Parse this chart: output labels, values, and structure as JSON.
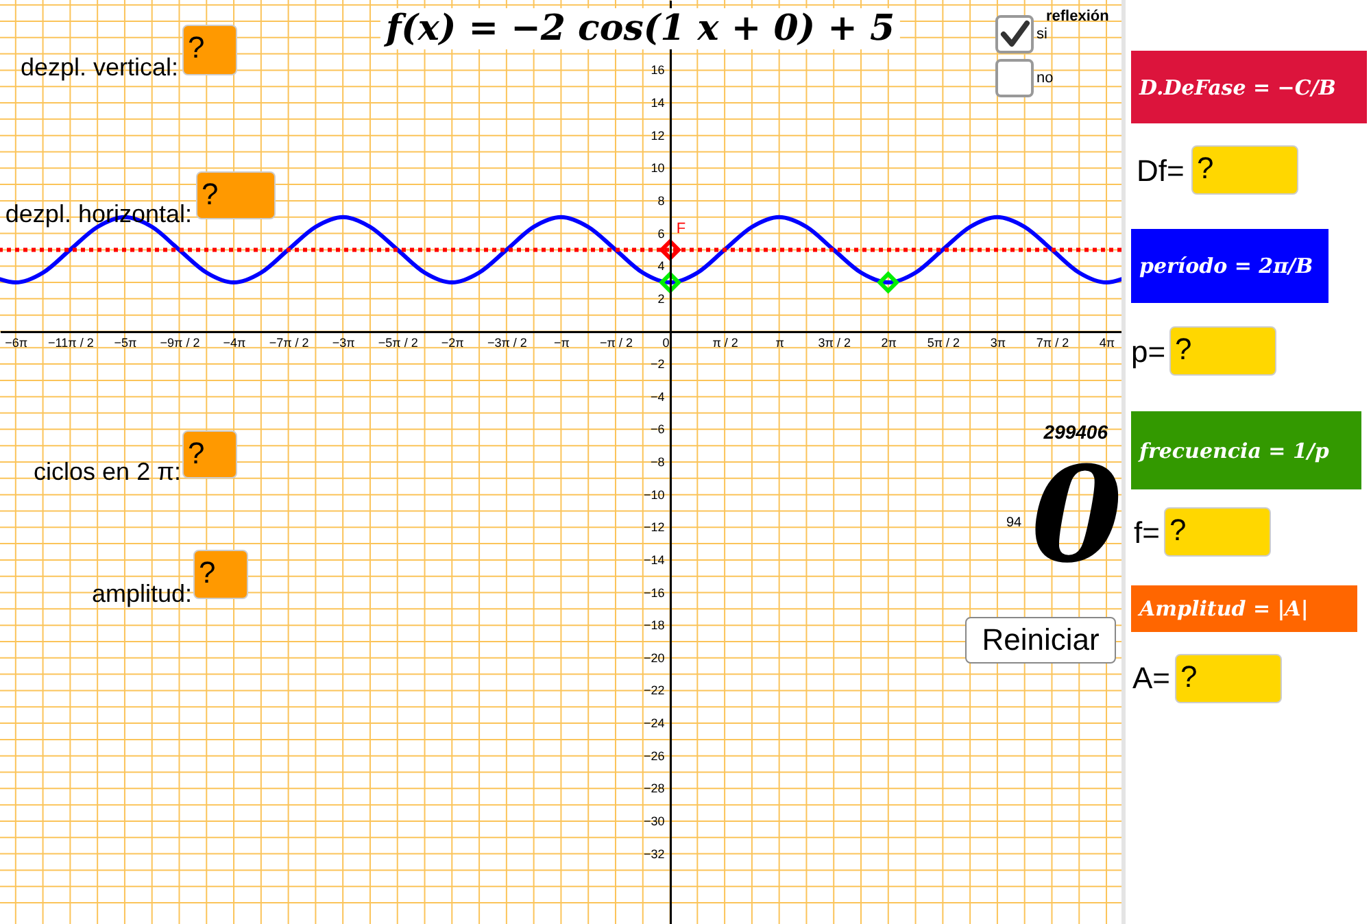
{
  "chart_data": {
    "type": "line",
    "title": "f(x) = −2 cos(1 x + 0) + 5",
    "xlim": [
      -19.3,
      13.0
    ],
    "ylim": [
      -36.3,
      20.3
    ],
    "xticks": [
      {
        "value": -18.8496,
        "label": "−6π"
      },
      {
        "value": -18.0642,
        "label": null
      },
      {
        "value": -17.2788,
        "label": "−11π / 2"
      },
      {
        "value": -16.4934,
        "label": null
      },
      {
        "value": -15.708,
        "label": "−5π"
      },
      {
        "value": -14.9226,
        "label": null
      },
      {
        "value": -14.1372,
        "label": "−9π / 2"
      },
      {
        "value": -13.3518,
        "label": null
      },
      {
        "value": -12.5664,
        "label": "−4π"
      },
      {
        "value": -11.781,
        "label": null
      },
      {
        "value": -10.9956,
        "label": "−7π / 2"
      },
      {
        "value": -10.2102,
        "label": null
      },
      {
        "value": -9.4248,
        "label": "−3π"
      },
      {
        "value": -8.6394,
        "label": null
      },
      {
        "value": -7.854,
        "label": "−5π / 2"
      },
      {
        "value": -7.0686,
        "label": null
      },
      {
        "value": -6.2832,
        "label": "−2π"
      },
      {
        "value": -5.4978,
        "label": null
      },
      {
        "value": -4.7124,
        "label": "−3π / 2"
      },
      {
        "value": -3.927,
        "label": null
      },
      {
        "value": -3.1416,
        "label": "−π"
      },
      {
        "value": -2.3562,
        "label": null
      },
      {
        "value": -1.5708,
        "label": "−π / 2"
      },
      {
        "value": -0.7854,
        "label": null
      },
      0,
      {
        "value": 0.7854,
        "label": null
      },
      {
        "value": 1.5708,
        "label": "π / 2"
      },
      {
        "value": 2.3562,
        "label": null
      },
      {
        "value": 3.1416,
        "label": "π"
      },
      {
        "value": 3.927,
        "label": null
      },
      {
        "value": 4.7124,
        "label": "3π / 2"
      },
      {
        "value": 5.4978,
        "label": null
      },
      {
        "value": 6.2832,
        "label": "2π"
      },
      {
        "value": 7.0686,
        "label": null
      },
      {
        "value": 7.854,
        "label": "5π / 2"
      },
      {
        "value": 8.6394,
        "label": null
      },
      {
        "value": 9.4248,
        "label": "3π"
      },
      {
        "value": 10.2102,
        "label": null
      },
      {
        "value": 10.9956,
        "label": "7π / 2"
      },
      {
        "value": 11.781,
        "label": null
      },
      {
        "value": 12.5664,
        "label": "4π"
      }
    ],
    "yticks": [
      {
        "value": -35,
        "label": null
      },
      {
        "value": -34,
        "label": null
      },
      {
        "value": -33,
        "label": null
      },
      -32,
      {
        "value": -31,
        "label": null
      },
      -30,
      {
        "value": -29,
        "label": null
      },
      -28,
      {
        "value": -27,
        "label": null
      },
      -26,
      {
        "value": -25,
        "label": null
      },
      -24,
      {
        "value": -23,
        "label": null
      },
      -22,
      {
        "value": -21,
        "label": null
      },
      -20,
      {
        "value": -19,
        "label": null
      },
      -18,
      {
        "value": -17,
        "label": null
      },
      -16,
      {
        "value": -15,
        "label": null
      },
      -14,
      {
        "value": -13,
        "label": null
      },
      -12,
      {
        "value": -11,
        "label": null
      },
      -10,
      {
        "value": -9,
        "label": null
      },
      -8,
      {
        "value": -7,
        "label": null
      },
      -6,
      {
        "value": -5,
        "label": null
      },
      -4,
      {
        "value": -3,
        "label": null
      },
      -2,
      {
        "value": -1,
        "label": null
      },
      {
        "value": 0,
        "label": null
      },
      {
        "value": 1,
        "label": null
      },
      2,
      {
        "value": 3,
        "label": null
      },
      4,
      {
        "value": 5,
        "label": null
      },
      6,
      {
        "value": 7,
        "label": null
      },
      8,
      {
        "value": 9,
        "label": null
      },
      10,
      {
        "value": 11,
        "label": null
      },
      12,
      {
        "value": 13,
        "label": null
      },
      14,
      {
        "value": 15,
        "label": null
      },
      16,
      {
        "value": 17,
        "label": null
      },
      {
        "value": 18,
        "label": null
      },
      {
        "value": 19,
        "label": null
      },
      {
        "value": 20,
        "label": null
      }
    ],
    "grid": true,
    "series": [
      {
        "color": "#0000ff",
        "marker": "none",
        "x": [
          -19.3,
          -18.85,
          -18.06,
          -17.28,
          -16.49,
          -15.71,
          -14.92,
          -14.14,
          -13.35,
          -12.57,
          -11.78,
          -11.0,
          -10.21,
          -9.42,
          -8.64,
          -7.85,
          -7.07,
          -6.28,
          -5.5,
          -4.71,
          -3.93,
          -3.14,
          -2.36,
          -1.57,
          -0.79,
          0,
          0.79,
          1.57,
          2.36,
          3.14,
          3.93,
          4.71,
          5.5,
          6.28,
          7.07,
          7.85,
          8.64,
          9.42,
          10.21,
          11.0,
          11.78,
          12.57,
          13.0
        ],
        "values": [
          3.2,
          3,
          3.6,
          5,
          6.4,
          7,
          6.4,
          5,
          3.6,
          3,
          3.6,
          5,
          6.4,
          7,
          6.4,
          5,
          3.6,
          3,
          3.6,
          5,
          6.4,
          7,
          6.4,
          5,
          3.6,
          3,
          3.6,
          5,
          6.4,
          7,
          6.4,
          5,
          3.6,
          3,
          3.6,
          5,
          6.4,
          7,
          6.4,
          5,
          3.6,
          3,
          3.2
        ]
      },
      {
        "type": "scatter",
        "color": "#ff0000",
        "marker": "diamond",
        "x": [
          0
        ],
        "values": [
          5
        ]
      },
      {
        "type": "scatter",
        "color": "#00ee00",
        "marker": "diamond",
        "x": [
          0,
          6.28
        ],
        "values": [
          3,
          3
        ]
      }
    ],
    "ref_lines": [
      {
        "axis": "y",
        "value": 5,
        "color": "#ff0000",
        "line_style": "dotted"
      }
    ],
    "annotations": [
      {
        "text": "F",
        "x": 0,
        "y": 5
      },
      "dezpl. vertical:",
      "?",
      "dezpl. horizontal:",
      "?",
      "ciclos en 2 π:",
      "?",
      "amplitud:",
      "?",
      "reflexión",
      "si",
      "no",
      "299406",
      "0",
      "94",
      "Reiniciar",
      "D.DeFase = −C/B",
      "Df=",
      "?",
      "período = 2π/B",
      "p=",
      "?",
      "frecuencia = 1/p",
      "f=",
      "?",
      "Amplitud = |A|",
      "A=",
      "?"
    ]
  }
}
